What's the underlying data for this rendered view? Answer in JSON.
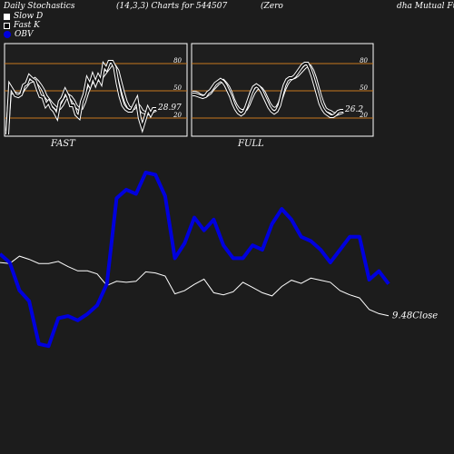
{
  "header": {
    "title": "Daily Stochastics",
    "params": "(14,3,3) Charts for 544507",
    "company_left": "(Zero",
    "company_right": "dha Mutual Fu"
  },
  "legend": {
    "slow_d": "Slow D",
    "fast_k": "Fast K",
    "obv": "OBV"
  },
  "colors": {
    "background": "#1c1c1c",
    "panel_bg": "#1e1e1e",
    "ref_lines": "#c8781e",
    "obv": "#0000dd",
    "price": "#ffffff",
    "text": "#ffffff"
  },
  "chart_data": [
    {
      "type": "line",
      "label": "FAST",
      "ylim": [
        0,
        100
      ],
      "levels": [
        20,
        50,
        80
      ],
      "level_labels": [
        "20",
        "50",
        "80"
      ],
      "last_value_label": "28.97",
      "series": [
        {
          "name": "Slow D",
          "values": [
            6,
            49,
            48,
            47,
            46,
            47,
            52,
            56,
            60,
            61,
            63,
            60,
            56,
            51,
            44,
            40,
            36,
            33,
            30,
            31,
            35,
            41,
            45,
            43,
            39,
            33,
            30,
            31,
            38,
            48,
            56,
            61,
            62,
            62,
            64,
            68,
            72,
            76,
            80,
            77,
            72,
            60,
            48,
            38,
            32,
            30,
            31,
            36,
            32,
            27,
            26,
            25,
            26,
            28,
            29
          ]
        },
        {
          "name": "Fast K",
          "values": [
            2,
            55,
            50,
            45,
            44,
            46,
            56,
            58,
            66,
            63,
            61,
            52,
            44,
            43,
            34,
            38,
            31,
            28,
            22,
            38,
            42,
            50,
            44,
            34,
            34,
            24,
            21,
            38,
            46,
            62,
            56,
            66,
            58,
            66,
            60,
            78,
            74,
            82,
            82,
            76,
            58,
            44,
            34,
            30,
            28,
            28,
            34,
            40,
            20,
            10,
            20,
            30,
            24,
            30,
            30
          ]
        }
      ]
    },
    {
      "type": "line",
      "label": "FULL",
      "ylim": [
        0,
        100
      ],
      "levels": [
        20,
        50,
        80
      ],
      "level_labels": [
        "20",
        "50",
        "80"
      ],
      "last_value_label": "26.2",
      "series": [
        {
          "name": "Slow D",
          "values": [
            48,
            48,
            47,
            45,
            44,
            44,
            46,
            48,
            52,
            55,
            58,
            60,
            61,
            58,
            54,
            48,
            40,
            34,
            30,
            28,
            28,
            30,
            35,
            42,
            48,
            52,
            54,
            52,
            48,
            42,
            36,
            32,
            30,
            31,
            36,
            44,
            52,
            58,
            62,
            64,
            65,
            67,
            70,
            73,
            76,
            78,
            77,
            72,
            64,
            54,
            44,
            36,
            30,
            28,
            27,
            25,
            24,
            25,
            26,
            27
          ]
        },
        {
          "name": "Fast K",
          "values": [
            46,
            46,
            45,
            44,
            43,
            44,
            48,
            50,
            54,
            58,
            60,
            62,
            60,
            56,
            50,
            44,
            36,
            30,
            26,
            24,
            26,
            32,
            40,
            48,
            54,
            56,
            54,
            50,
            44,
            38,
            32,
            28,
            26,
            28,
            34,
            46,
            56,
            62,
            64,
            64,
            66,
            70,
            74,
            78,
            80,
            80,
            74,
            66,
            56,
            46,
            36,
            30,
            26,
            24,
            22,
            22,
            24,
            27,
            28,
            28
          ]
        }
      ]
    },
    {
      "type": "line",
      "label": "Close",
      "last_value_label": "9.48",
      "ylim": [
        0,
        100
      ],
      "series": [
        {
          "name": "OBV",
          "values": [
            62,
            58,
            45,
            40,
            20,
            19,
            32,
            33,
            31,
            34,
            38,
            48,
            88,
            92,
            90,
            100,
            99,
            89,
            60,
            67,
            79,
            73,
            78,
            66,
            60,
            60,
            66,
            64,
            76,
            83,
            78,
            70,
            68,
            64,
            58,
            64,
            70,
            70,
            50,
            54,
            48
          ]
        },
        {
          "name": "Close",
          "values": [
            73,
            72,
            79,
            76,
            72,
            72,
            74,
            69,
            65,
            65,
            62,
            51,
            55,
            54,
            55,
            64,
            63,
            60,
            43,
            46,
            52,
            57,
            44,
            42,
            45,
            54,
            49,
            44,
            41,
            50,
            56,
            53,
            58,
            56,
            54,
            46,
            42,
            39,
            28,
            24,
            22
          ]
        }
      ]
    }
  ]
}
